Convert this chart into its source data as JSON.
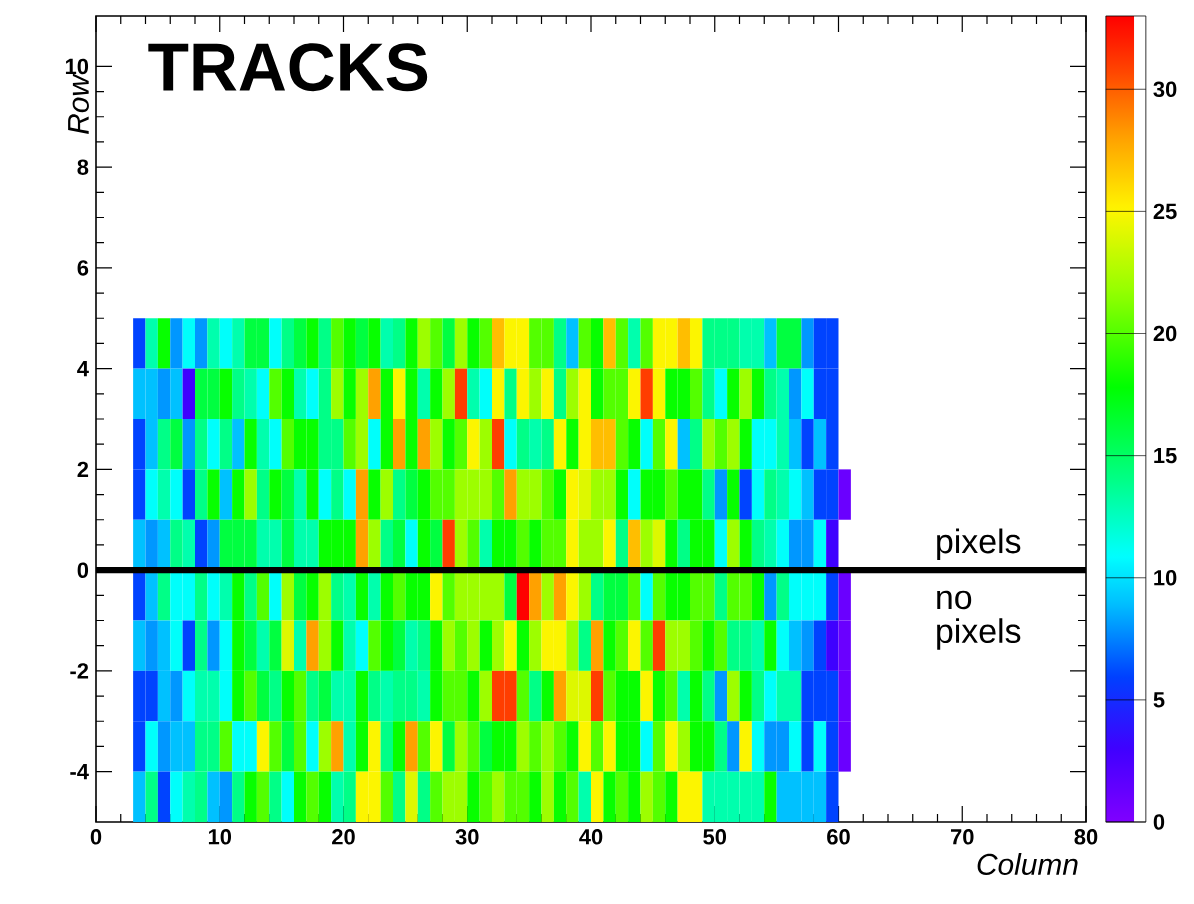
{
  "chart_data": {
    "type": "heatmap",
    "xlabel": "Column",
    "ylabel": "Row",
    "annotations": [
      "TRACKS",
      "pixels",
      "no pixels"
    ],
    "xlim": [
      0,
      80
    ],
    "ylim": [
      -5,
      11
    ],
    "xticks": [
      0,
      10,
      20,
      30,
      40,
      50,
      60,
      70,
      80
    ],
    "yticks": [
      -4,
      -2,
      0,
      2,
      4,
      6,
      8,
      10
    ],
    "clim": [
      0,
      33
    ],
    "cticks": [
      0,
      5,
      10,
      15,
      20,
      25,
      30
    ],
    "ref_lines": [
      {
        "axis": "y",
        "value": 0,
        "color": "#000000"
      }
    ],
    "x": [
      3.5,
      4.5,
      5.5,
      6.5,
      7.5,
      8.5,
      9.5,
      10.5,
      11.5,
      12.5,
      13.5,
      14.5,
      15.5,
      16.5,
      17.5,
      18.5,
      19.5,
      20.5,
      21.5,
      22.5,
      23.5,
      24.5,
      25.5,
      26.5,
      27.5,
      28.5,
      29.5,
      30.5,
      31.5,
      32.5,
      33.5,
      34.5,
      35.5,
      36.5,
      37.5,
      38.5,
      39.5,
      40.5,
      41.5,
      42.5,
      43.5,
      44.5,
      45.5,
      46.5,
      47.5,
      48.5,
      49.5,
      50.5,
      51.5,
      52.5,
      53.5,
      54.5,
      55.5,
      56.5,
      57.5,
      58.5,
      59.5,
      60.5
    ],
    "y": [
      4.5,
      3.5,
      2.5,
      1.5,
      0.5,
      -0.5,
      -1.5,
      -2.5,
      -3.5,
      -4.5
    ],
    "cells": [
      [
        6,
        13,
        18,
        8,
        11,
        8,
        13,
        11,
        13,
        16,
        16,
        11,
        14,
        16,
        18,
        14,
        20,
        18,
        16,
        18,
        13,
        14,
        18,
        22,
        20,
        16,
        22,
        18,
        20,
        27,
        25,
        25,
        20,
        20,
        14,
        9,
        20,
        18,
        27,
        20,
        13,
        20,
        25,
        25,
        27,
        25,
        14,
        14,
        14,
        13,
        13,
        9,
        16,
        16,
        8,
        6,
        6,
        null
      ],
      [
        9,
        9,
        8,
        9,
        3,
        16,
        16,
        18,
        14,
        13,
        11,
        20,
        18,
        13,
        11,
        14,
        22,
        18,
        22,
        28,
        18,
        25,
        18,
        13,
        18,
        22,
        31,
        13,
        11,
        25,
        14,
        25,
        22,
        25,
        14,
        22,
        25,
        18,
        20,
        20,
        25,
        31,
        25,
        18,
        18,
        20,
        14,
        11,
        18,
        22,
        18,
        14,
        13,
        8,
        11,
        6,
        6,
        null
      ],
      [
        6,
        9,
        14,
        16,
        8,
        14,
        11,
        14,
        9,
        18,
        13,
        11,
        20,
        18,
        18,
        14,
        14,
        20,
        22,
        11,
        18,
        28,
        18,
        28,
        22,
        18,
        20,
        25,
        22,
        31,
        11,
        14,
        13,
        14,
        25,
        18,
        25,
        27,
        27,
        20,
        18,
        11,
        20,
        25,
        9,
        14,
        22,
        20,
        22,
        18,
        11,
        11,
        13,
        9,
        6,
        9,
        6,
        null
      ],
      [
        6,
        11,
        13,
        11,
        6,
        14,
        18,
        9,
        18,
        22,
        14,
        18,
        16,
        13,
        18,
        11,
        14,
        11,
        28,
        18,
        22,
        14,
        16,
        18,
        20,
        20,
        22,
        22,
        22,
        20,
        28,
        22,
        22,
        20,
        18,
        25,
        24,
        22,
        22,
        18,
        11,
        18,
        18,
        20,
        18,
        18,
        14,
        8,
        18,
        6,
        11,
        14,
        13,
        11,
        9,
        6,
        6,
        1
      ],
      [
        9,
        8,
        9,
        14,
        13,
        6,
        8,
        16,
        16,
        16,
        13,
        13,
        16,
        13,
        13,
        18,
        18,
        18,
        28,
        22,
        14,
        16,
        11,
        18,
        16,
        31,
        22,
        20,
        13,
        18,
        18,
        20,
        18,
        20,
        20,
        25,
        22,
        22,
        25,
        14,
        27,
        22,
        24,
        18,
        14,
        18,
        18,
        11,
        22,
        18,
        14,
        13,
        11,
        8,
        8,
        11,
        3,
        null
      ],
      [
        6,
        9,
        14,
        11,
        11,
        14,
        11,
        13,
        18,
        14,
        20,
        11,
        22,
        16,
        18,
        22,
        14,
        13,
        18,
        13,
        18,
        20,
        18,
        18,
        25,
        20,
        22,
        22,
        22,
        22,
        16,
        33,
        28,
        22,
        28,
        25,
        22,
        14,
        16,
        16,
        20,
        11,
        20,
        18,
        18,
        20,
        20,
        14,
        20,
        20,
        18,
        8,
        14,
        11,
        11,
        11,
        6,
        1
      ],
      [
        9,
        8,
        9,
        11,
        6,
        14,
        8,
        11,
        18,
        16,
        13,
        16,
        24,
        13,
        28,
        22,
        18,
        13,
        11,
        20,
        18,
        16,
        13,
        14,
        18,
        22,
        20,
        22,
        18,
        22,
        25,
        18,
        22,
        25,
        25,
        22,
        14,
        28,
        18,
        20,
        25,
        20,
        31,
        22,
        22,
        20,
        18,
        20,
        14,
        14,
        13,
        18,
        11,
        9,
        8,
        6,
        3,
        1
      ],
      [
        6,
        6,
        9,
        8,
        11,
        13,
        13,
        11,
        18,
        20,
        16,
        14,
        18,
        20,
        14,
        16,
        13,
        13,
        18,
        14,
        13,
        14,
        14,
        13,
        18,
        20,
        20,
        18,
        22,
        31,
        31,
        20,
        14,
        18,
        28,
        24,
        24,
        31,
        20,
        18,
        18,
        25,
        18,
        20,
        13,
        18,
        14,
        8,
        22,
        18,
        14,
        11,
        13,
        13,
        6,
        6,
        6,
        1
      ],
      [
        6,
        11,
        8,
        9,
        9,
        14,
        14,
        20,
        11,
        11,
        25,
        20,
        16,
        20,
        11,
        22,
        28,
        13,
        18,
        25,
        14,
        18,
        28,
        20,
        25,
        16,
        22,
        20,
        16,
        18,
        18,
        22,
        20,
        22,
        20,
        18,
        25,
        20,
        25,
        18,
        18,
        11,
        20,
        25,
        22,
        18,
        18,
        14,
        8,
        25,
        11,
        8,
        8,
        11,
        6,
        11,
        6,
        1
      ],
      [
        9,
        14,
        6,
        11,
        13,
        14,
        9,
        8,
        14,
        18,
        20,
        14,
        11,
        18,
        20,
        18,
        13,
        14,
        25,
        25,
        20,
        14,
        24,
        14,
        20,
        22,
        22,
        18,
        20,
        22,
        20,
        20,
        18,
        22,
        18,
        20,
        13,
        25,
        18,
        20,
        18,
        22,
        20,
        18,
        25,
        25,
        13,
        13,
        13,
        13,
        13,
        18,
        9,
        9,
        9,
        9,
        6,
        null
      ]
    ]
  }
}
